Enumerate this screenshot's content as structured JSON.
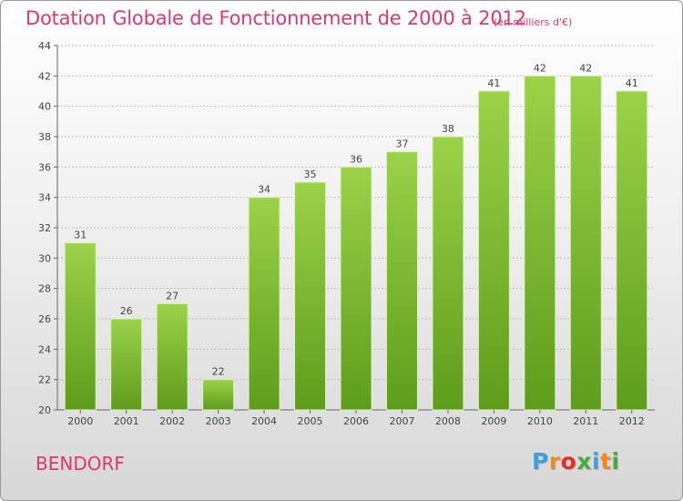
{
  "header": {
    "title": "Dotation Globale de Fonctionnement de 2000 à 2012",
    "unit": "(en milliers d'€)"
  },
  "footer": {
    "city": "BENDORF",
    "logo_text": "Proxiti",
    "logo_colors": [
      "#3fa0d8",
      "#f08a1c",
      "#e02f2f",
      "#4aa93d",
      "#3fa0d8",
      "#f08a1c",
      "#4aa93d"
    ]
  },
  "colors": {
    "accent": "#e0356f",
    "bar_top": "#9bd248",
    "bar_bottom": "#5f9c1c",
    "grid": "#bdbdbd",
    "axis": "#666666",
    "text": "#444444"
  },
  "chart_data": {
    "type": "bar",
    "title": "Dotation Globale de Fonctionnement de 2000 à 2012",
    "subtitle": "(en milliers d'€)",
    "categories": [
      "2000",
      "2001",
      "2002",
      "2003",
      "2004",
      "2005",
      "2006",
      "2007",
      "2008",
      "2009",
      "2010",
      "2011",
      "2012"
    ],
    "values": [
      31,
      26,
      27,
      22,
      34,
      35,
      36,
      37,
      38,
      41,
      42,
      42,
      41
    ],
    "data_labels": [
      "31",
      "26",
      "27",
      "22",
      "34",
      "35",
      "36",
      "37",
      "38",
      "41",
      "42",
      "42",
      "41"
    ],
    "xlabel": "",
    "ylabel": "",
    "ylim": [
      20,
      44
    ],
    "yticks": [
      20,
      22,
      24,
      26,
      28,
      30,
      32,
      34,
      36,
      38,
      40,
      42,
      44
    ],
    "grid": true,
    "legend": "none"
  }
}
